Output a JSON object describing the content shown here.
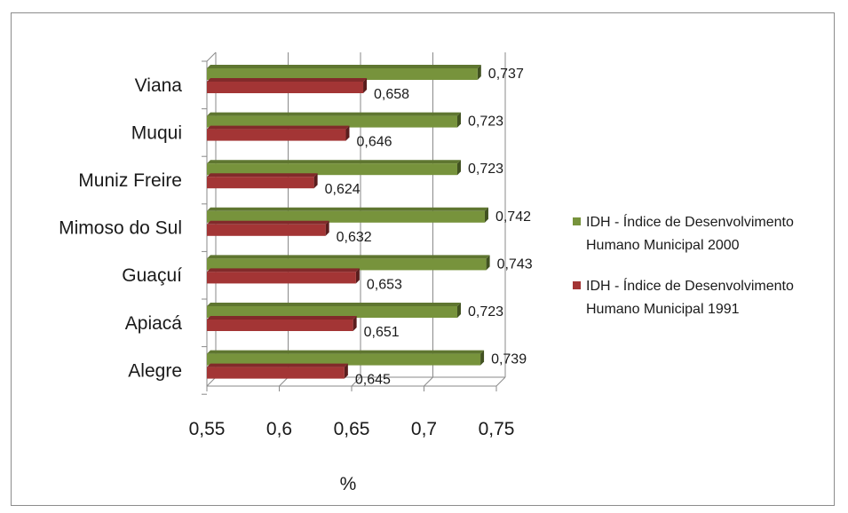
{
  "chart_data": {
    "type": "bar",
    "orientation": "horizontal",
    "categories": [
      "Viana",
      "Muqui",
      "Muniz Freire",
      "Mimoso do Sul",
      "Guaçuí",
      "Apiacá",
      "Alegre"
    ],
    "series": [
      {
        "name_lines": [
          "IDH - Índice de Desenvolvimento",
          "Humano Municipal  2000"
        ],
        "values": [
          0.737,
          0.723,
          0.723,
          0.742,
          0.743,
          0.723,
          0.739
        ],
        "labels": [
          "0,737",
          "0,723",
          "0,723",
          "0,742",
          "0,743",
          "0,723",
          "0,739"
        ],
        "color": "#77933c"
      },
      {
        "name_lines": [
          "IDH - Índice de Desenvolvimento",
          "Humano Municipal  1991"
        ],
        "values": [
          0.658,
          0.646,
          0.624,
          0.632,
          0.653,
          0.651,
          0.645
        ],
        "labels": [
          "0,658",
          "0,646",
          "0,624",
          "0,632",
          "0,653",
          "0,651",
          "0,645"
        ],
        "color": "#a33535"
      }
    ],
    "x_ticks": [
      0.55,
      0.6,
      0.65,
      0.7,
      0.75
    ],
    "x_tick_labels": [
      "0,55",
      "0,6",
      "0,65",
      "0,7",
      "0,75"
    ],
    "xlim": [
      0.55,
      0.75
    ],
    "xlabel": "%",
    "ylabel": "",
    "grid": true,
    "legend_position": "right"
  }
}
